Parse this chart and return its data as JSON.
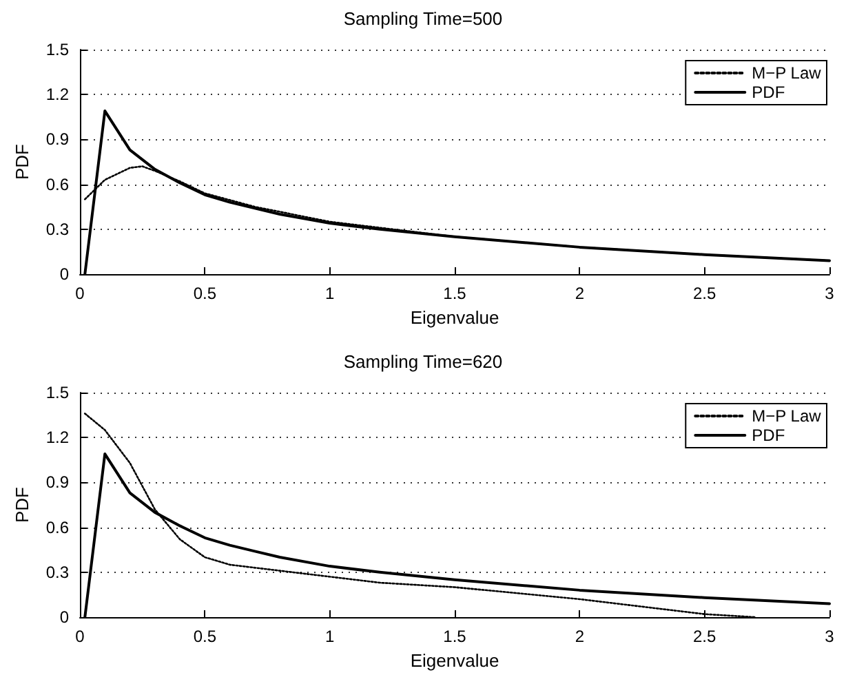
{
  "chart_data": [
    {
      "type": "line",
      "title": "Sampling Time=500",
      "xlabel": "Eigenvalue",
      "ylabel": "PDF",
      "xlim": [
        0,
        3
      ],
      "ylim": [
        0,
        1.5
      ],
      "xticks": [
        0,
        0.5,
        1,
        1.5,
        2,
        2.5,
        3
      ],
      "yticks": [
        0,
        0.3,
        0.6,
        0.9,
        1.2,
        1.5
      ],
      "grid": "y",
      "legend": "top right",
      "marker": "none",
      "series": [
        {
          "name": "M−P Law",
          "color": "#000000",
          "line_style": "dotted",
          "x": [
            0.02,
            0.1,
            0.2,
            0.25,
            0.3,
            0.4,
            0.5,
            0.7,
            1.0,
            1.5,
            2.0,
            2.5,
            3.0
          ],
          "values": [
            0.5,
            0.63,
            0.71,
            0.72,
            0.69,
            0.62,
            0.54,
            0.45,
            0.35,
            0.25,
            0.18,
            0.13,
            0.09
          ]
        },
        {
          "name": "PDF",
          "color": "#000000",
          "line_style": "solid",
          "x": [
            0.02,
            0.1,
            0.2,
            0.3,
            0.4,
            0.5,
            0.6,
            0.7,
            0.8,
            1.0,
            1.2,
            1.5,
            2.0,
            2.5,
            3.0
          ],
          "values": [
            0,
            1.09,
            0.83,
            0.7,
            0.61,
            0.53,
            0.48,
            0.44,
            0.4,
            0.34,
            0.3,
            0.25,
            0.18,
            0.13,
            0.09
          ]
        }
      ]
    },
    {
      "type": "line",
      "title": "Sampling Time=620",
      "xlabel": "Eigenvalue",
      "ylabel": "PDF",
      "xlim": [
        0,
        3
      ],
      "ylim": [
        0,
        1.5
      ],
      "xticks": [
        0,
        0.5,
        1,
        1.5,
        2,
        2.5,
        3
      ],
      "yticks": [
        0,
        0.3,
        0.6,
        0.9,
        1.2,
        1.5
      ],
      "grid": "y",
      "legend": "top right",
      "marker": "none",
      "series": [
        {
          "name": "M−P Law",
          "color": "#000000",
          "line_style": "dotted",
          "x": [
            0.02,
            0.1,
            0.2,
            0.3,
            0.4,
            0.5,
            0.6,
            0.8,
            1.0,
            1.2,
            1.5,
            2.0,
            2.3,
            2.5,
            2.7
          ],
          "values": [
            1.36,
            1.25,
            1.03,
            0.72,
            0.52,
            0.4,
            0.35,
            0.31,
            0.27,
            0.23,
            0.2,
            0.12,
            0.06,
            0.02,
            0
          ]
        },
        {
          "name": "PDF",
          "color": "#000000",
          "line_style": "solid",
          "x": [
            0.02,
            0.1,
            0.2,
            0.3,
            0.4,
            0.5,
            0.6,
            0.7,
            0.8,
            1.0,
            1.2,
            1.5,
            2.0,
            2.5,
            3.0
          ],
          "values": [
            0,
            1.09,
            0.83,
            0.7,
            0.61,
            0.53,
            0.48,
            0.44,
            0.4,
            0.34,
            0.3,
            0.25,
            0.18,
            0.13,
            0.09
          ]
        }
      ]
    }
  ]
}
